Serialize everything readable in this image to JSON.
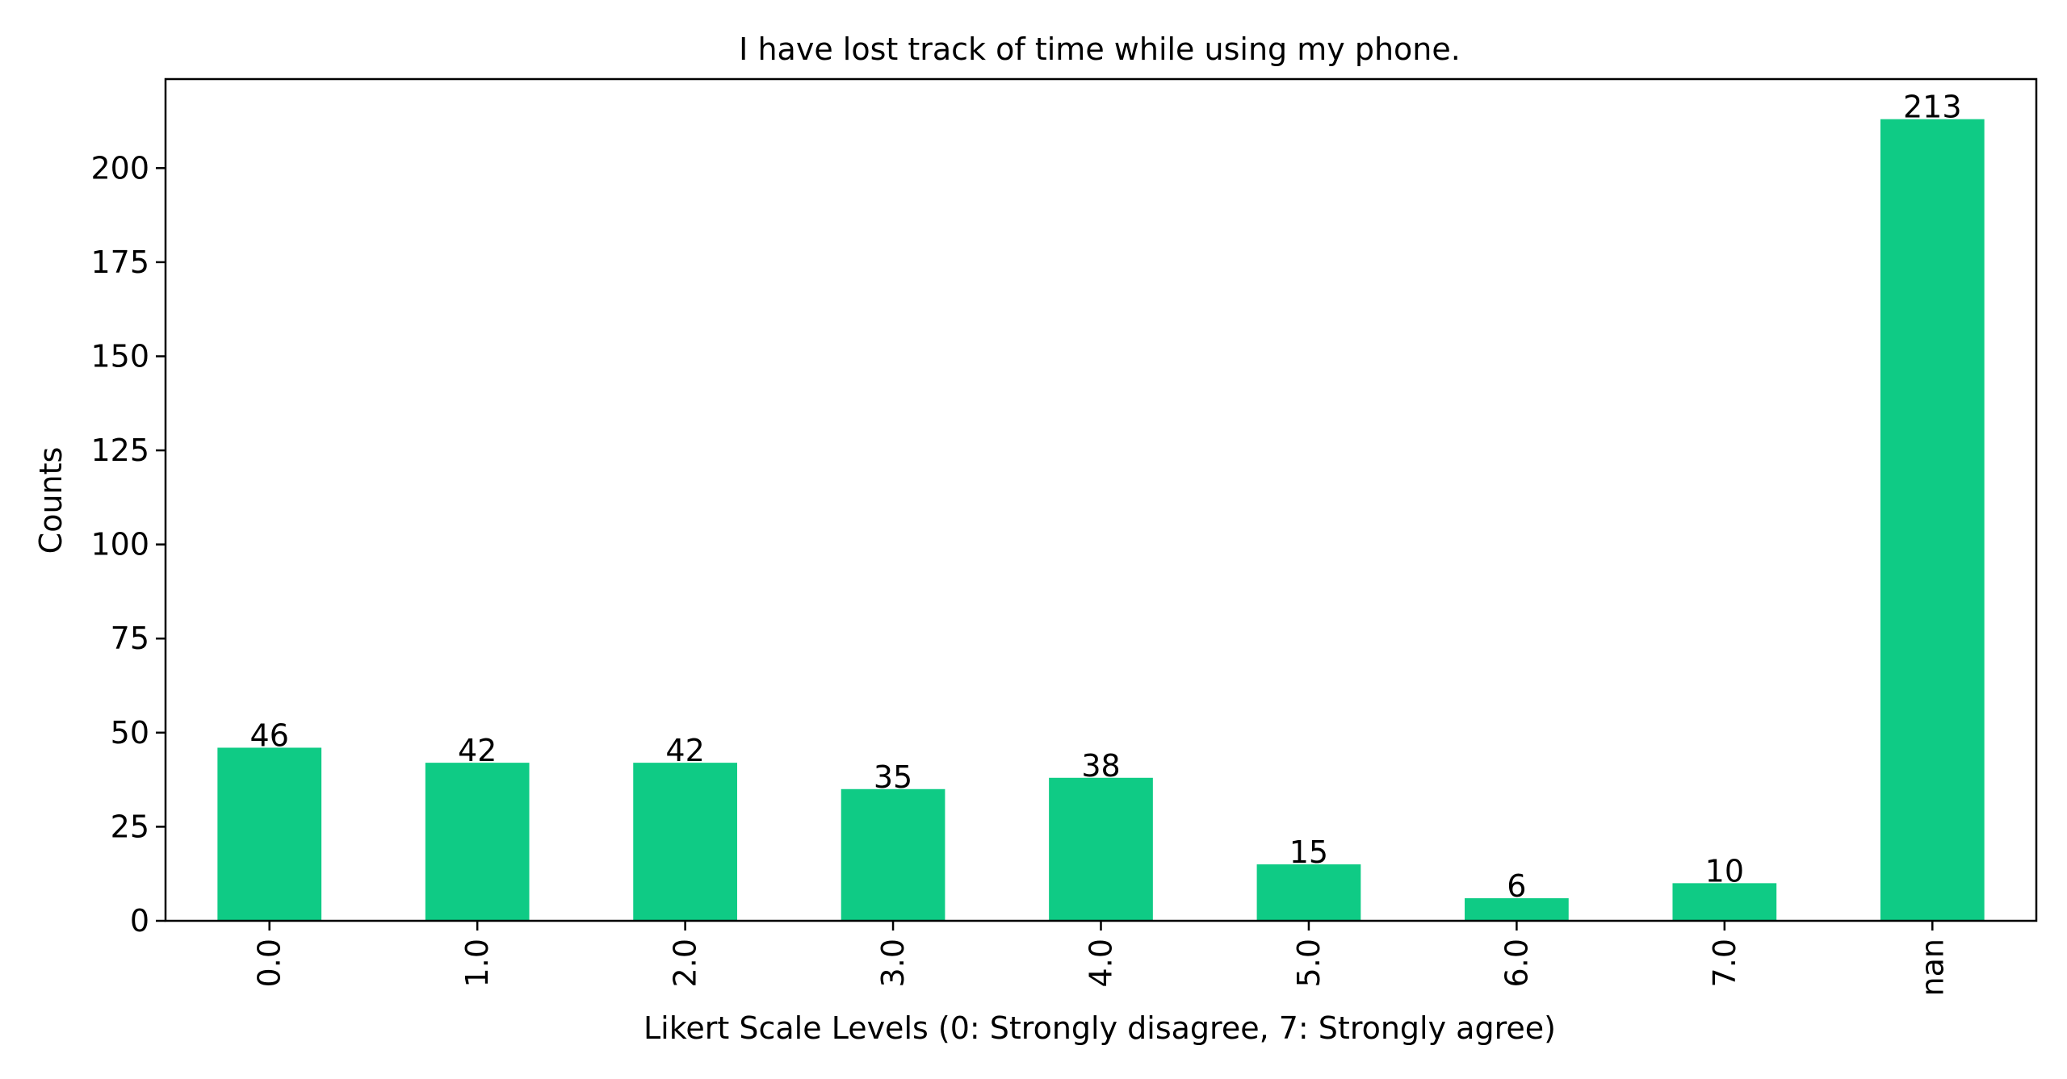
{
  "chart_data": {
    "type": "bar",
    "title": "I have lost track of time while using my phone.",
    "xlabel": "Likert Scale Levels (0: Strongly disagree, 7: Strongly agree)",
    "ylabel": "Counts",
    "categories": [
      "0.0",
      "1.0",
      "2.0",
      "3.0",
      "4.0",
      "5.0",
      "6.0",
      "7.0",
      "nan"
    ],
    "values": [
      46,
      42,
      42,
      35,
      38,
      15,
      6,
      10,
      213
    ],
    "data_labels": [
      "46",
      "42",
      "42",
      "35",
      "38",
      "15",
      "6",
      "10",
      "213"
    ],
    "yticks": [
      0,
      25,
      50,
      75,
      100,
      125,
      150,
      175,
      200
    ],
    "ytick_labels": [
      "0",
      "25",
      "50",
      "75",
      "100",
      "125",
      "150",
      "175",
      "200"
    ],
    "ylim": [
      0,
      223.65
    ],
    "bar_color": "#0fcb85",
    "grid": false,
    "legend": false
  }
}
